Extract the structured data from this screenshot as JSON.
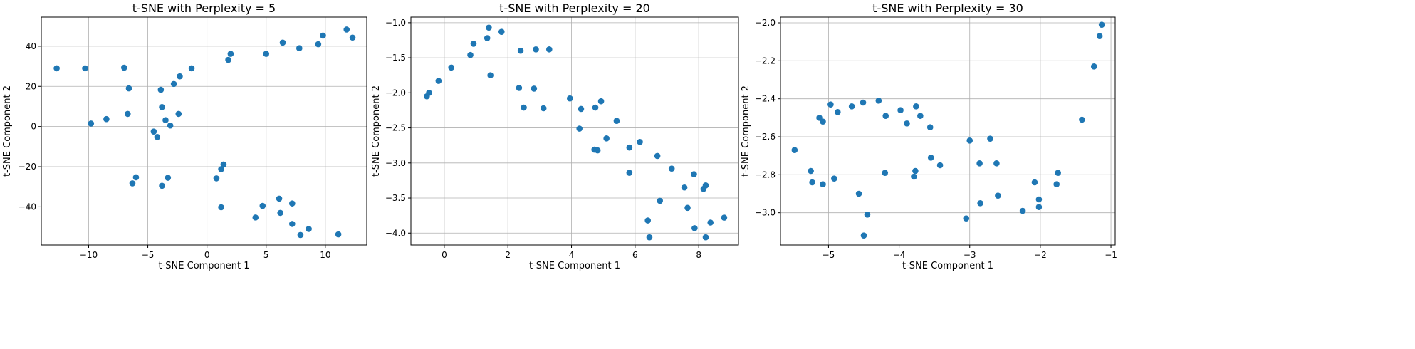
{
  "colors": {
    "point": "#1f77b4",
    "grid": "#b0b0b0",
    "axis": "#000000"
  },
  "chart_data": [
    {
      "type": "scatter",
      "title": "t-SNE with Perplexity = 5",
      "xlabel": "t-SNE Component 1",
      "ylabel": "t-SNE Component 2",
      "xlim": [
        -14.0,
        13.5
      ],
      "ylim": [
        -59,
        54.5
      ],
      "xticks": [
        -10,
        -5,
        0,
        5,
        10
      ],
      "yticks": [
        -40,
        -20,
        0,
        20,
        40
      ],
      "xtick_labels": [
        "−10",
        "−5",
        "0",
        "5",
        "10"
      ],
      "ytick_labels": [
        "−40",
        "−20",
        "0",
        "20",
        "40"
      ],
      "grid": true,
      "points": [
        [
          -12.7,
          29
        ],
        [
          -10.3,
          29
        ],
        [
          -9.8,
          1.5
        ],
        [
          -8.5,
          3.7
        ],
        [
          -7.0,
          29.3
        ],
        [
          -6.6,
          19
        ],
        [
          -6.7,
          6.3
        ],
        [
          -6.3,
          -28.3
        ],
        [
          -6.0,
          -25.3
        ],
        [
          -4.5,
          -2.5
        ],
        [
          -4.2,
          -5.2
        ],
        [
          -3.9,
          18.3
        ],
        [
          -3.8,
          9.7
        ],
        [
          -3.8,
          -29.5
        ],
        [
          -3.5,
          3.2
        ],
        [
          -3.3,
          -25.5
        ],
        [
          -3.1,
          0.5
        ],
        [
          -2.8,
          21.2
        ],
        [
          -2.4,
          6.3
        ],
        [
          -2.3,
          25.0
        ],
        [
          -1.3,
          29.0
        ],
        [
          0.8,
          -25.8
        ],
        [
          1.2,
          -21.2
        ],
        [
          1.4,
          -18.9
        ],
        [
          1.2,
          -40.2
        ],
        [
          1.8,
          33.2
        ],
        [
          2.0,
          36.2
        ],
        [
          4.1,
          -45.3
        ],
        [
          4.7,
          -39.5
        ],
        [
          5.0,
          36.2
        ],
        [
          6.1,
          -35.9
        ],
        [
          6.2,
          -43.0
        ],
        [
          6.4,
          41.8
        ],
        [
          7.2,
          -38.3
        ],
        [
          7.2,
          -48.5
        ],
        [
          7.8,
          39.0
        ],
        [
          7.9,
          -54.0
        ],
        [
          8.6,
          -51.0
        ],
        [
          9.4,
          41.0
        ],
        [
          9.8,
          45.3
        ],
        [
          11.1,
          -53.7
        ],
        [
          11.8,
          48.3
        ],
        [
          12.3,
          44.3
        ]
      ]
    },
    {
      "type": "scatter",
      "title": "t-SNE with Perplexity = 20",
      "xlabel": "t-SNE Component 1",
      "ylabel": "t-SNE Component 2",
      "xlim": [
        -1.05,
        9.25
      ],
      "ylim": [
        -4.17,
        -0.92
      ],
      "xticks": [
        0,
        2,
        4,
        6,
        8
      ],
      "yticks": [
        -4.0,
        -3.5,
        -3.0,
        -2.5,
        -2.0,
        -1.5,
        -1.0
      ],
      "xtick_labels": [
        "0",
        "2",
        "4",
        "6",
        "8"
      ],
      "ytick_labels": [
        "−4.0",
        "−3.5",
        "−3.0",
        "−2.5",
        "−2.0",
        "−1.5",
        "−1.0"
      ],
      "grid": true,
      "points": [
        [
          -0.55,
          -2.05
        ],
        [
          -0.48,
          -2.0
        ],
        [
          -0.18,
          -1.83
        ],
        [
          0.22,
          -1.64
        ],
        [
          0.82,
          -1.46
        ],
        [
          0.92,
          -1.3
        ],
        [
          1.35,
          -1.22
        ],
        [
          1.4,
          -1.07
        ],
        [
          1.45,
          -1.75
        ],
        [
          1.8,
          -1.13
        ],
        [
          2.35,
          -1.93
        ],
        [
          2.4,
          -1.4
        ],
        [
          2.5,
          -2.21
        ],
        [
          2.82,
          -1.94
        ],
        [
          2.88,
          -1.38
        ],
        [
          3.12,
          -2.22
        ],
        [
          3.3,
          -1.38
        ],
        [
          3.95,
          -2.08
        ],
        [
          4.25,
          -2.51
        ],
        [
          4.3,
          -2.23
        ],
        [
          4.72,
          -2.81
        ],
        [
          4.75,
          -2.21
        ],
        [
          4.82,
          -2.82
        ],
        [
          4.93,
          -2.12
        ],
        [
          5.1,
          -2.65
        ],
        [
          5.42,
          -2.4
        ],
        [
          5.82,
          -2.78
        ],
        [
          5.82,
          -3.14
        ],
        [
          6.15,
          -2.7
        ],
        [
          6.4,
          -3.82
        ],
        [
          6.45,
          -4.06
        ],
        [
          6.7,
          -2.9
        ],
        [
          6.78,
          -3.54
        ],
        [
          7.15,
          -3.08
        ],
        [
          7.55,
          -3.35
        ],
        [
          7.65,
          -3.64
        ],
        [
          7.85,
          -3.16
        ],
        [
          7.87,
          -3.93
        ],
        [
          8.15,
          -3.37
        ],
        [
          8.22,
          -3.32
        ],
        [
          8.22,
          -4.06
        ],
        [
          8.37,
          -3.85
        ],
        [
          8.8,
          -3.78
        ]
      ]
    },
    {
      "type": "scatter",
      "title": "t-SNE with Perplexity = 30",
      "xlabel": "t-SNE Component 1",
      "ylabel": "t-SNE Component 2",
      "xlim": [
        -5.68,
        -0.94
      ],
      "ylim": [
        -3.17,
        -1.97
      ],
      "xticks": [
        -5,
        -4,
        -3,
        -2,
        -1
      ],
      "yticks": [
        -3.0,
        -2.8,
        -2.6,
        -2.4,
        -2.2,
        -2.0
      ],
      "xtick_labels": [
        "−5",
        "−4",
        "−3",
        "−2",
        "−1"
      ],
      "ytick_labels": [
        "−3.0",
        "−2.8",
        "−2.6",
        "−2.4",
        "−2.2",
        "−2.0"
      ],
      "grid": true,
      "points": [
        [
          -5.48,
          -2.67
        ],
        [
          -5.25,
          -2.78
        ],
        [
          -5.23,
          -2.84
        ],
        [
          -5.13,
          -2.5
        ],
        [
          -5.08,
          -2.85
        ],
        [
          -5.08,
          -2.52
        ],
        [
          -4.97,
          -2.43
        ],
        [
          -4.92,
          -2.82
        ],
        [
          -4.87,
          -2.47
        ],
        [
          -4.67,
          -2.44
        ],
        [
          -4.57,
          -2.9
        ],
        [
          -4.51,
          -2.42
        ],
        [
          -4.5,
          -3.12
        ],
        [
          -4.45,
          -3.01
        ],
        [
          -4.29,
          -2.41
        ],
        [
          -4.2,
          -2.79
        ],
        [
          -4.19,
          -2.49
        ],
        [
          -3.98,
          -2.46
        ],
        [
          -3.89,
          -2.53
        ],
        [
          -3.79,
          -2.81
        ],
        [
          -3.77,
          -2.78
        ],
        [
          -3.76,
          -2.44
        ],
        [
          -3.7,
          -2.49
        ],
        [
          -3.56,
          -2.55
        ],
        [
          -3.55,
          -2.71
        ],
        [
          -3.42,
          -2.75
        ],
        [
          -3.05,
          -3.03
        ],
        [
          -3.0,
          -2.62
        ],
        [
          -2.86,
          -2.74
        ],
        [
          -2.85,
          -2.95
        ],
        [
          -2.71,
          -2.61
        ],
        [
          -2.62,
          -2.74
        ],
        [
          -2.6,
          -2.91
        ],
        [
          -2.25,
          -2.99
        ],
        [
          -2.08,
          -2.84
        ],
        [
          -2.02,
          -2.93
        ],
        [
          -2.02,
          -2.97
        ],
        [
          -1.77,
          -2.85
        ],
        [
          -1.75,
          -2.79
        ],
        [
          -1.41,
          -2.51
        ],
        [
          -1.24,
          -2.23
        ],
        [
          -1.16,
          -2.07
        ],
        [
          -1.13,
          -2.01
        ]
      ]
    }
  ]
}
